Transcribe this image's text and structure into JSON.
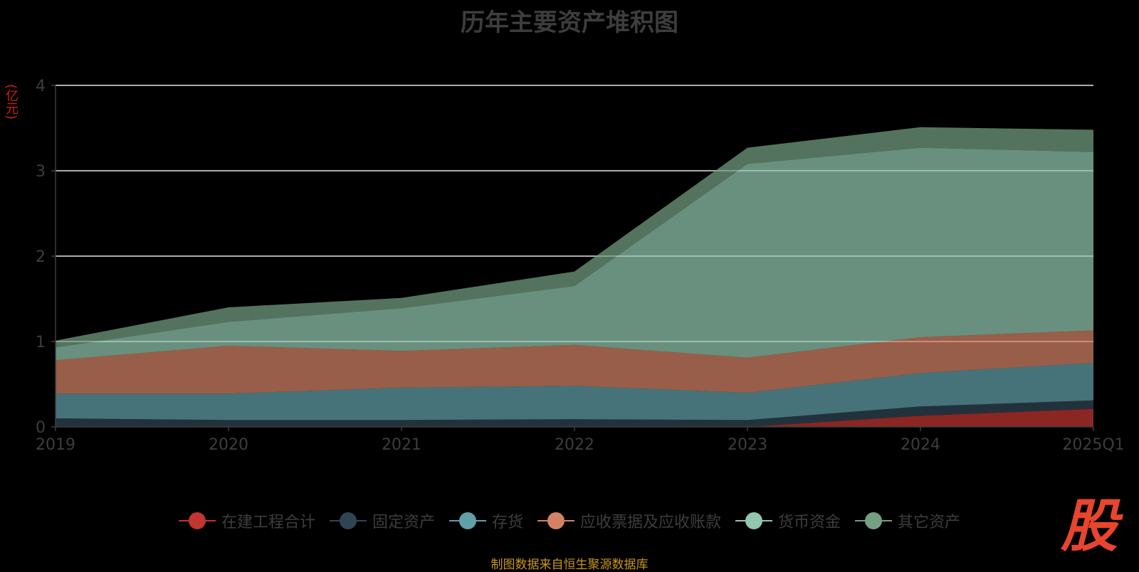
{
  "chart_data": {
    "type": "area",
    "stacked": true,
    "title": "历年主要资产堆积图",
    "ylabel": "(亿元)",
    "categories": [
      "2019",
      "2020",
      "2021",
      "2022",
      "2023",
      "2024",
      "2025Q1"
    ],
    "ylim": [
      0,
      4
    ],
    "yticks": [
      "0",
      "1",
      "2",
      "3",
      "4"
    ],
    "grid": true,
    "legend_position": "bottom-center",
    "series": [
      {
        "name": "在建工程合计",
        "color": "#c23531",
        "values": [
          0,
          0,
          0,
          0,
          0,
          0.13,
          0.21
        ]
      },
      {
        "name": "固定资产",
        "color": "#2f4554",
        "values": [
          0.1,
          0.08,
          0.08,
          0.09,
          0.08,
          0.11,
          0.1
        ]
      },
      {
        "name": "存货",
        "color": "#61a0a8",
        "values": [
          0.29,
          0.31,
          0.38,
          0.39,
          0.32,
          0.39,
          0.44
        ]
      },
      {
        "name": "应收票据及应收账款",
        "color": "#d48265",
        "values": [
          0.39,
          0.56,
          0.43,
          0.48,
          0.41,
          0.42,
          0.38
        ]
      },
      {
        "name": "货币资金",
        "color": "#91c7ae",
        "values": [
          0.15,
          0.28,
          0.5,
          0.69,
          2.27,
          2.22,
          2.09
        ]
      },
      {
        "name": "其它资产",
        "color": "#749f83",
        "values": [
          0.08,
          0.17,
          0.12,
          0.17,
          0.19,
          0.24,
          0.26
        ]
      }
    ]
  },
  "source_note": "制图数据来自恒生聚源数据库",
  "logo": {
    "text": "股",
    "color": "#e8452e"
  },
  "colors": {
    "background": "#000000",
    "grid": "#e6e6e6",
    "axis_text": "#3d3d3d",
    "unit_text": "#c8201c",
    "source_text": "#c8961e"
  }
}
